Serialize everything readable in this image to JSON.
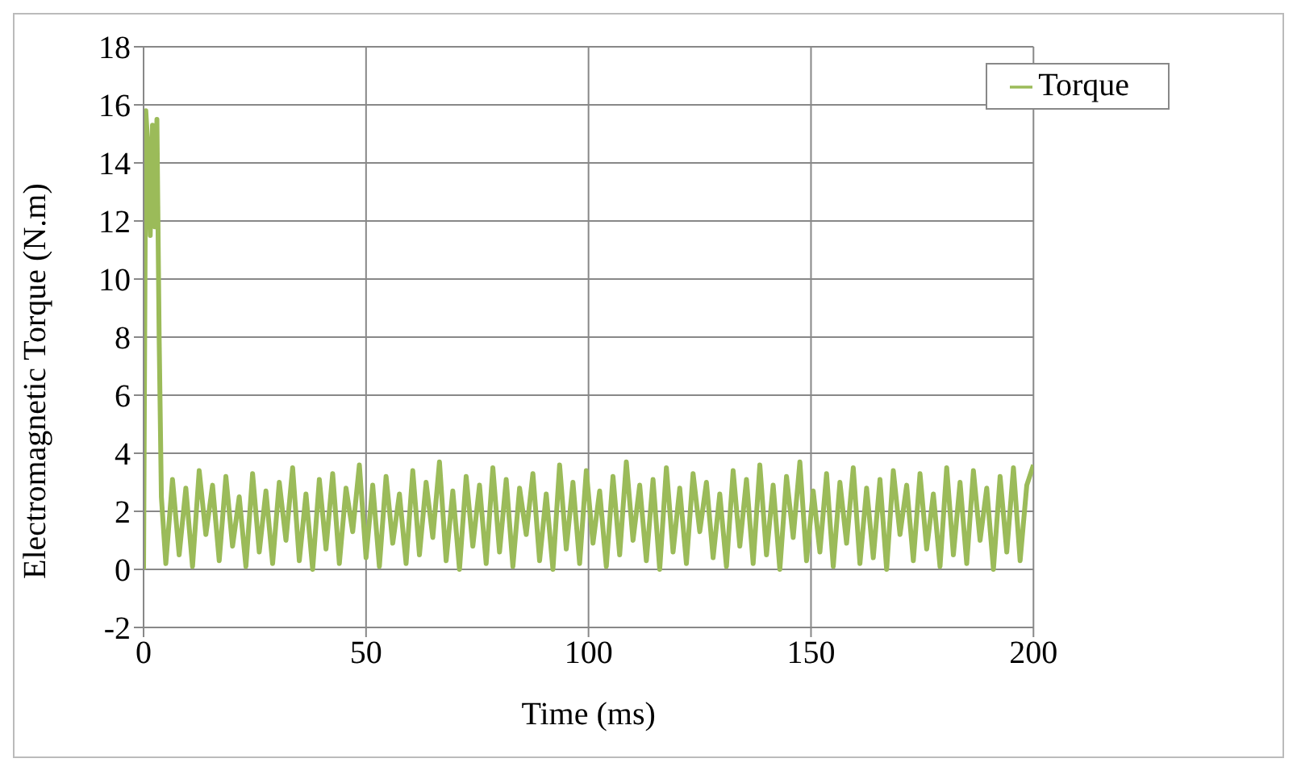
{
  "chart_data": {
    "type": "line",
    "xlabel": "Time (ms)",
    "ylabel": "Electromagnetic Torque (N.m)",
    "xlim": [
      0,
      200
    ],
    "xticks": [
      0,
      50,
      100,
      150,
      200
    ],
    "ylim": [
      -2,
      18
    ],
    "yticks": [
      -2,
      0,
      2,
      4,
      6,
      8,
      10,
      12,
      14,
      16,
      18
    ],
    "grid": true,
    "legend": "top right",
    "marker": "none",
    "line_style": "solid",
    "x": [
      0,
      0.5,
      1,
      1.5,
      2,
      2.5,
      3,
      3.5,
      4,
      5,
      6.5,
      8,
      9.5,
      11,
      12.5,
      14,
      15.5,
      17,
      18.5,
      20,
      21.5,
      23,
      24.5,
      26,
      27.5,
      29,
      30.5,
      32,
      33.5,
      35,
      36.5,
      38,
      39.5,
      41,
      42.5,
      44,
      45.5,
      47,
      48.5,
      50,
      51.5,
      53,
      54.5,
      56,
      57.5,
      59,
      60.5,
      62,
      63.5,
      65,
      66.5,
      68,
      69.5,
      71,
      72.5,
      74,
      75.5,
      77,
      78.5,
      80,
      81.5,
      83,
      84.5,
      86,
      87.5,
      89,
      90.5,
      92,
      93.5,
      95,
      96.5,
      98,
      99.5,
      101,
      102.5,
      104,
      105.5,
      107,
      108.5,
      110,
      111.5,
      113,
      114.5,
      116,
      117.5,
      119,
      120.5,
      122,
      123.5,
      125,
      126.5,
      128,
      129.5,
      131,
      132.5,
      134,
      135.5,
      137,
      138.5,
      140,
      141.5,
      143,
      144.5,
      146,
      147.5,
      149,
      150.5,
      152,
      153.5,
      155,
      156.5,
      158,
      159.5,
      161,
      162.5,
      164,
      165.5,
      167,
      168.5,
      170,
      171.5,
      173,
      174.5,
      176,
      177.5,
      179,
      180.5,
      182,
      183.5,
      185,
      186.5,
      188,
      189.5,
      191,
      192.5,
      194,
      195.5,
      197,
      198.5,
      200
    ],
    "series": [
      {
        "name": "Torque",
        "color": "#9bbb59",
        "values": [
          0,
          15.8,
          14.5,
          11.5,
          15.3,
          11.8,
          15.5,
          8,
          2.5,
          0.2,
          3.1,
          0.5,
          2.8,
          0.1,
          3.4,
          1.2,
          2.9,
          0.3,
          3.2,
          0.8,
          2.5,
          0.1,
          3.3,
          0.6,
          2.7,
          0.2,
          3.0,
          1.0,
          3.5,
          0.3,
          2.6,
          0.0,
          3.1,
          0.7,
          3.3,
          0.2,
          2.8,
          1.3,
          3.6,
          0.4,
          2.9,
          0.1,
          3.2,
          0.9,
          2.6,
          0.2,
          3.4,
          0.5,
          3.0,
          1.1,
          3.7,
          0.3,
          2.7,
          0.0,
          3.2,
          0.8,
          2.9,
          0.2,
          3.5,
          0.6,
          3.1,
          0.1,
          2.8,
          1.2,
          3.3,
          0.3,
          2.6,
          0.0,
          3.6,
          0.7,
          3.0,
          0.2,
          3.4,
          0.9,
          2.7,
          0.1,
          3.2,
          0.5,
          3.7,
          1.0,
          2.9,
          0.3,
          3.1,
          0.0,
          3.5,
          0.6,
          2.8,
          0.2,
          3.3,
          1.3,
          3.0,
          0.4,
          2.6,
          0.1,
          3.4,
          0.8,
          3.1,
          0.2,
          3.6,
          0.5,
          2.9,
          0.0,
          3.2,
          1.1,
          3.7,
          0.3,
          2.7,
          0.6,
          3.3,
          0.1,
          3.0,
          0.9,
          3.5,
          0.2,
          2.8,
          0.4,
          3.1,
          0.0,
          3.4,
          1.2,
          2.9,
          0.3,
          3.3,
          0.7,
          2.6,
          0.1,
          3.5,
          0.5,
          3.0,
          0.2,
          3.4,
          1.0,
          2.8,
          0.0,
          3.2,
          0.6,
          3.5,
          0.3,
          2.9,
          3.6
        ]
      }
    ]
  }
}
